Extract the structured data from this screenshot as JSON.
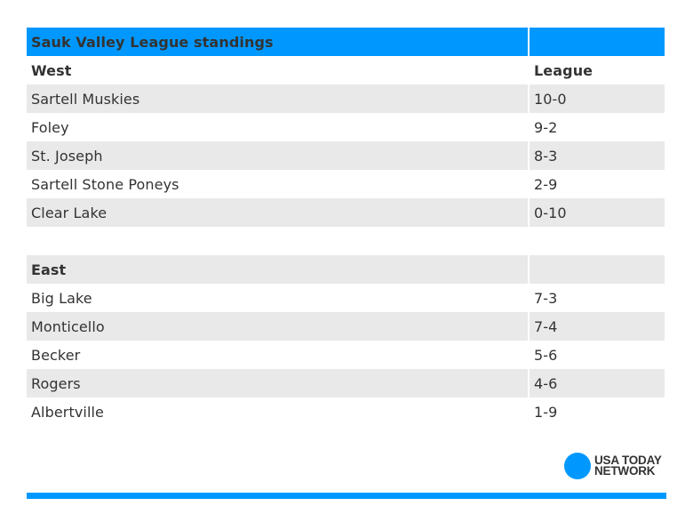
{
  "title": "Sauk Valley League standings",
  "colors": {
    "accent": "#0098fe",
    "row_alt": "#e9e9e9",
    "text": "#333333"
  },
  "west": {
    "label": "West",
    "column_header": "League",
    "rows": [
      {
        "team": "Sartell Muskies",
        "record": "10-0"
      },
      {
        "team": "Foley",
        "record": "9-2"
      },
      {
        "team": "St. Joseph",
        "record": "8-3"
      },
      {
        "team": "Sartell Stone Poneys",
        "record": "2-9"
      },
      {
        "team": "Clear Lake",
        "record": "0-10"
      }
    ]
  },
  "east": {
    "label": "East",
    "column_header": "",
    "rows": [
      {
        "team": "Big Lake",
        "record": "7-3"
      },
      {
        "team": "Monticello",
        "record": "7-4"
      },
      {
        "team": "Becker",
        "record": "5-6"
      },
      {
        "team": "Rogers",
        "record": "4-6"
      },
      {
        "team": "Albertville",
        "record": "1-9"
      }
    ]
  },
  "logo": {
    "line1": "USA TODAY",
    "line2": "NETWORK",
    "icon": "usa-today-dot-icon"
  }
}
